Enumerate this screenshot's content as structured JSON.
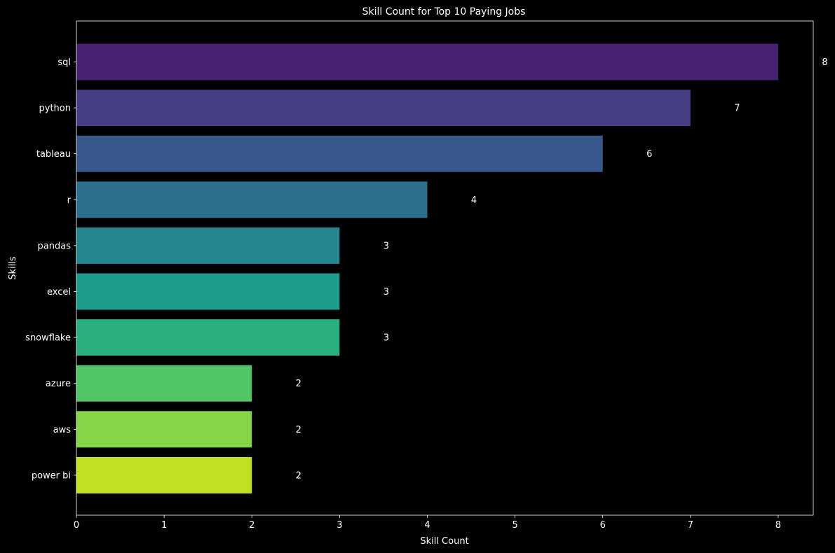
{
  "chart_data": {
    "type": "bar",
    "orientation": "horizontal",
    "title": "Skill Count for Top 10 Paying Jobs",
    "xlabel": "Skill Count",
    "ylabel": "Skills",
    "xlim": [
      0,
      8.4
    ],
    "xticks": [
      0,
      1,
      2,
      3,
      4,
      5,
      6,
      7,
      8
    ],
    "categories": [
      "sql",
      "python",
      "tableau",
      "r",
      "pandas",
      "excel",
      "snowflake",
      "azure",
      "aws",
      "power bi"
    ],
    "values": [
      8,
      7,
      6,
      4,
      3,
      3,
      3,
      2,
      2,
      2
    ],
    "colors": [
      "#482173",
      "#433e85",
      "#38588c",
      "#2d708e",
      "#25858e",
      "#1e9b8a",
      "#2ab07f",
      "#52c569",
      "#86d549",
      "#c2df23"
    ],
    "data_labels": [
      "8",
      "7",
      "6",
      "4",
      "3",
      "3",
      "3",
      "2",
      "2",
      "2"
    ],
    "grid": false,
    "legend": "none",
    "background": "#000000",
    "text_color": "#ffffff"
  }
}
